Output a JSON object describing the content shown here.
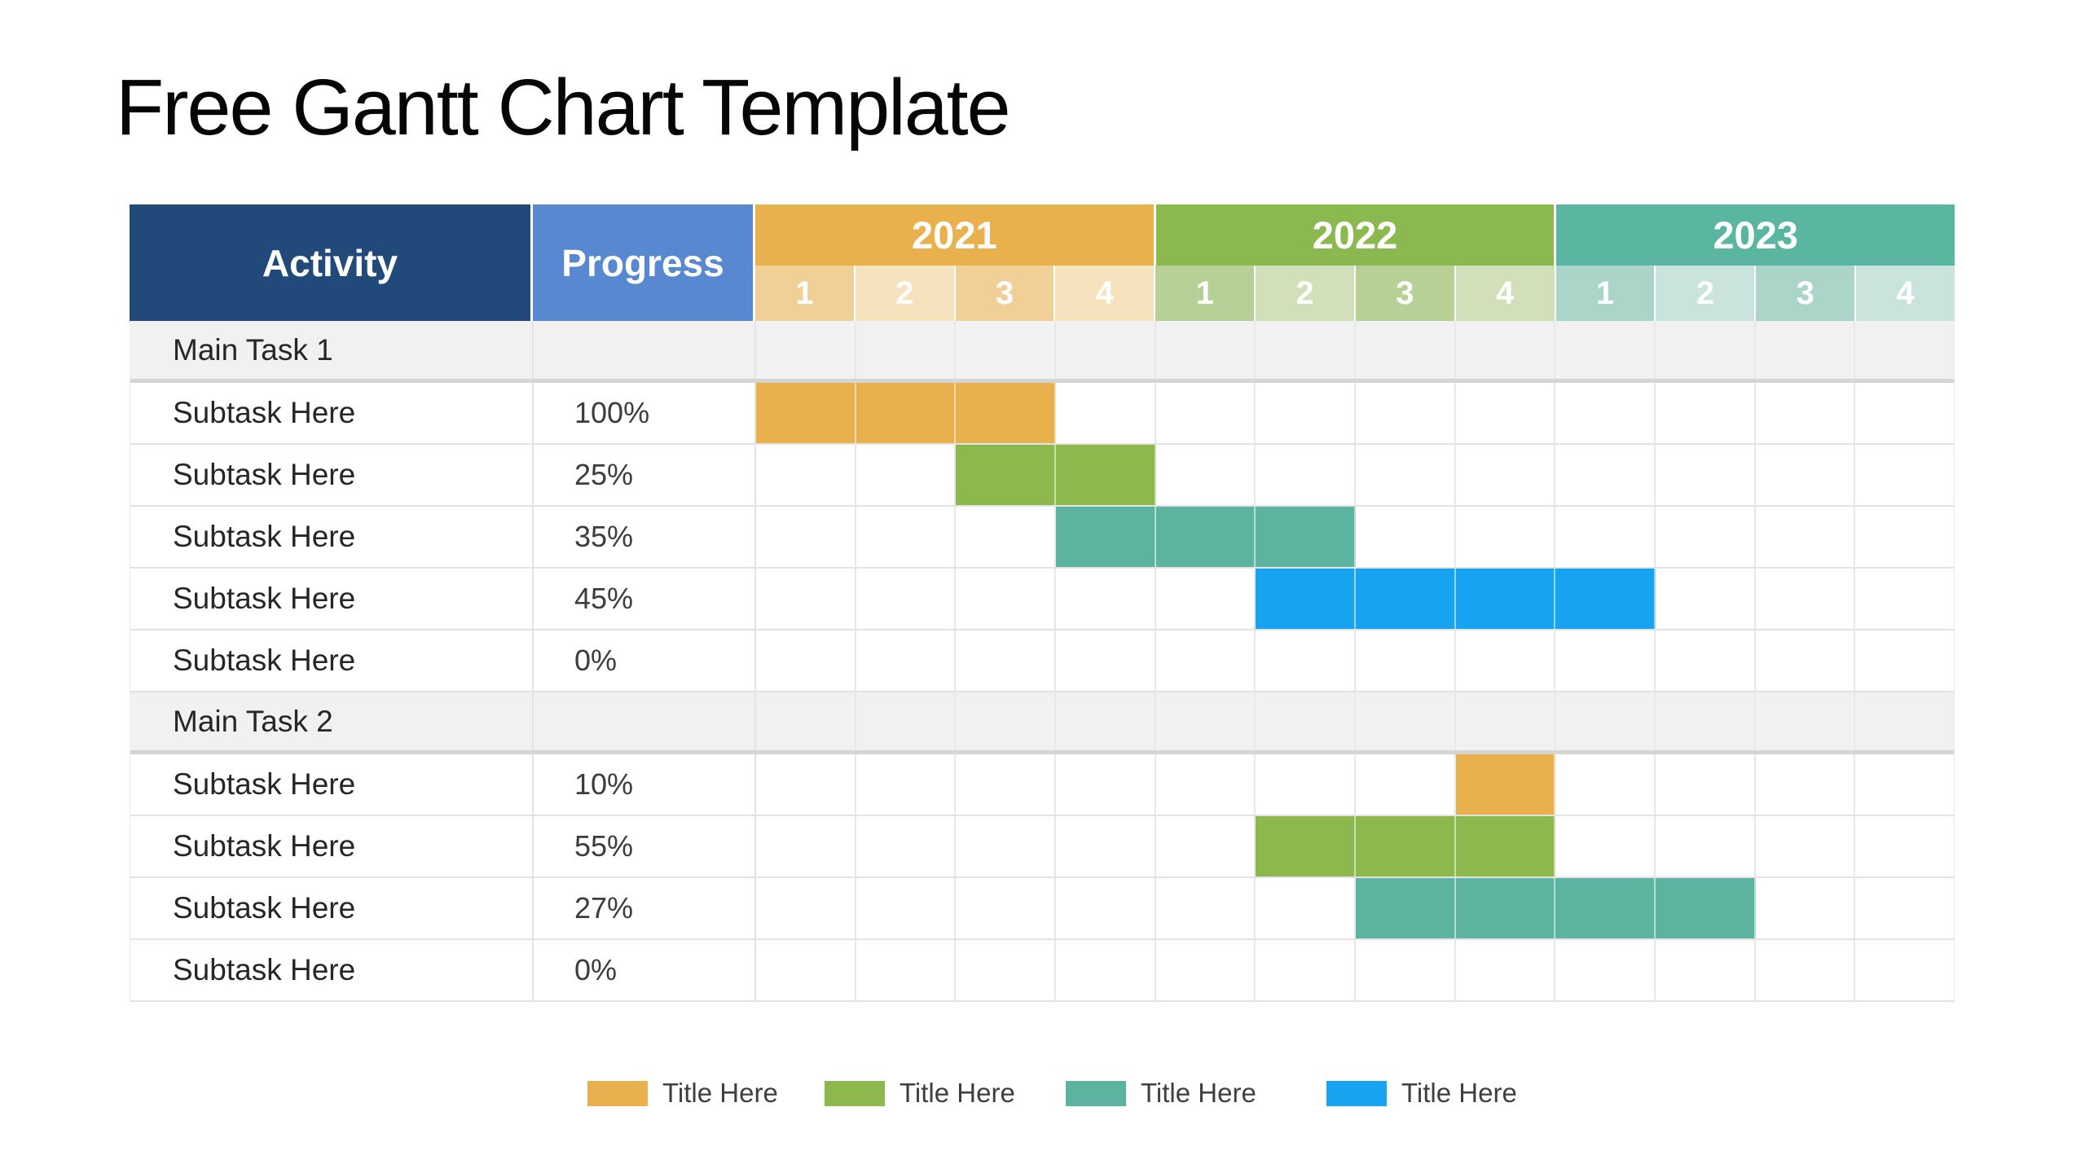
{
  "title": "Free Gantt Chart Template",
  "table": {
    "activity_header": "Activity",
    "progress_header": "Progress",
    "header_colors": {
      "activity_bg": "#214A7B",
      "progress_bg": "#5788D0"
    },
    "years": [
      {
        "label": "2021",
        "band_color": "#E9B14D",
        "tint_odd": "#F1D098",
        "tint_even": "#F6E2BD",
        "quarter_labels": [
          "1",
          "2",
          "3",
          "4"
        ]
      },
      {
        "label": "2022",
        "band_color": "#8CB850",
        "tint_odd": "#B7D095",
        "tint_even": "#D2E0B9",
        "quarter_labels": [
          "1",
          "2",
          "3",
          "4"
        ]
      },
      {
        "label": "2023",
        "band_color": "#5BB6A1",
        "tint_odd": "#ABD5C9",
        "tint_even": "#CAE4DD",
        "quarter_labels": [
          "1",
          "2",
          "3",
          "4"
        ]
      }
    ],
    "section_row_bg": "#F1F1F1",
    "rows": [
      {
        "type": "section",
        "activity": "Main Task 1",
        "progress": "",
        "bar": null
      },
      {
        "type": "task",
        "activity": "Subtask Here",
        "progress": "100%",
        "bar": {
          "start": 0,
          "span": 3,
          "color": "#E9B14D"
        }
      },
      {
        "type": "task",
        "activity": "Subtask Here",
        "progress": "25%",
        "bar": {
          "start": 2,
          "span": 2,
          "color": "#8CB84D"
        }
      },
      {
        "type": "task",
        "activity": "Subtask Here",
        "progress": "35%",
        "bar": {
          "start": 3,
          "span": 3,
          "color": "#5CB3A0"
        }
      },
      {
        "type": "task",
        "activity": "Subtask Here",
        "progress": "45%",
        "bar": {
          "start": 5,
          "span": 4,
          "color": "#16A4F1"
        }
      },
      {
        "type": "task",
        "activity": "Subtask Here",
        "progress": "0%",
        "bar": null
      },
      {
        "type": "section",
        "activity": "Main Task 2",
        "progress": "",
        "bar": null
      },
      {
        "type": "task",
        "activity": "Subtask Here",
        "progress": "10%",
        "bar": {
          "start": 7,
          "span": 1,
          "color": "#E9B14D"
        }
      },
      {
        "type": "task",
        "activity": "Subtask Here",
        "progress": "55%",
        "bar": {
          "start": 5,
          "span": 3,
          "color": "#8CB84D"
        }
      },
      {
        "type": "task",
        "activity": "Subtask Here",
        "progress": "27%",
        "bar": {
          "start": 6,
          "span": 4,
          "color": "#5CB3A0"
        }
      },
      {
        "type": "task",
        "activity": "Subtask Here",
        "progress": "0%",
        "bar": null
      }
    ]
  },
  "legend": {
    "items": [
      {
        "label": "Title Here",
        "color": "#E9B14D"
      },
      {
        "label": "Title Here",
        "color": "#8CB84D"
      },
      {
        "label": "Title Here",
        "color": "#5CB3A0"
      },
      {
        "label": "Title Here",
        "color": "#16A4F1"
      }
    ]
  },
  "chart_data": {
    "type": "gantt",
    "title": "Free Gantt Chart Template",
    "time_axis": {
      "years": [
        "2021",
        "2022",
        "2023"
      ],
      "quarters_per_year": [
        "1",
        "2",
        "3",
        "4"
      ]
    },
    "columns": [
      "Activity",
      "Progress"
    ],
    "tasks": [
      {
        "activity": "Main Task 1",
        "row_type": "section",
        "progress": null,
        "bar": null
      },
      {
        "activity": "Subtask Here",
        "row_type": "task",
        "progress": "100%",
        "bar": {
          "from": "2021 Q1",
          "to": "2021 Q3",
          "color": "#E9B14D"
        }
      },
      {
        "activity": "Subtask Here",
        "row_type": "task",
        "progress": "25%",
        "bar": {
          "from": "2021 Q3",
          "to": "2021 Q4",
          "color": "#8CB84D"
        }
      },
      {
        "activity": "Subtask Here",
        "row_type": "task",
        "progress": "35%",
        "bar": {
          "from": "2021 Q4",
          "to": "2022 Q2",
          "color": "#5CB3A0"
        }
      },
      {
        "activity": "Subtask Here",
        "row_type": "task",
        "progress": "45%",
        "bar": {
          "from": "2022 Q2",
          "to": "2023 Q1",
          "color": "#16A4F1"
        }
      },
      {
        "activity": "Subtask Here",
        "row_type": "task",
        "progress": "0%",
        "bar": null
      },
      {
        "activity": "Main Task 2",
        "row_type": "section",
        "progress": null,
        "bar": null
      },
      {
        "activity": "Subtask Here",
        "row_type": "task",
        "progress": "10%",
        "bar": {
          "from": "2022 Q4",
          "to": "2022 Q4",
          "color": "#E9B14D"
        }
      },
      {
        "activity": "Subtask Here",
        "row_type": "task",
        "progress": "55%",
        "bar": {
          "from": "2022 Q2",
          "to": "2022 Q4",
          "color": "#8CB84D"
        }
      },
      {
        "activity": "Subtask Here",
        "row_type": "task",
        "progress": "27%",
        "bar": {
          "from": "2022 Q3",
          "to": "2023 Q2",
          "color": "#5CB3A0"
        }
      },
      {
        "activity": "Subtask Here",
        "row_type": "task",
        "progress": "0%",
        "bar": null
      }
    ],
    "legend_entries": [
      "Title Here",
      "Title Here",
      "Title Here",
      "Title Here"
    ]
  }
}
